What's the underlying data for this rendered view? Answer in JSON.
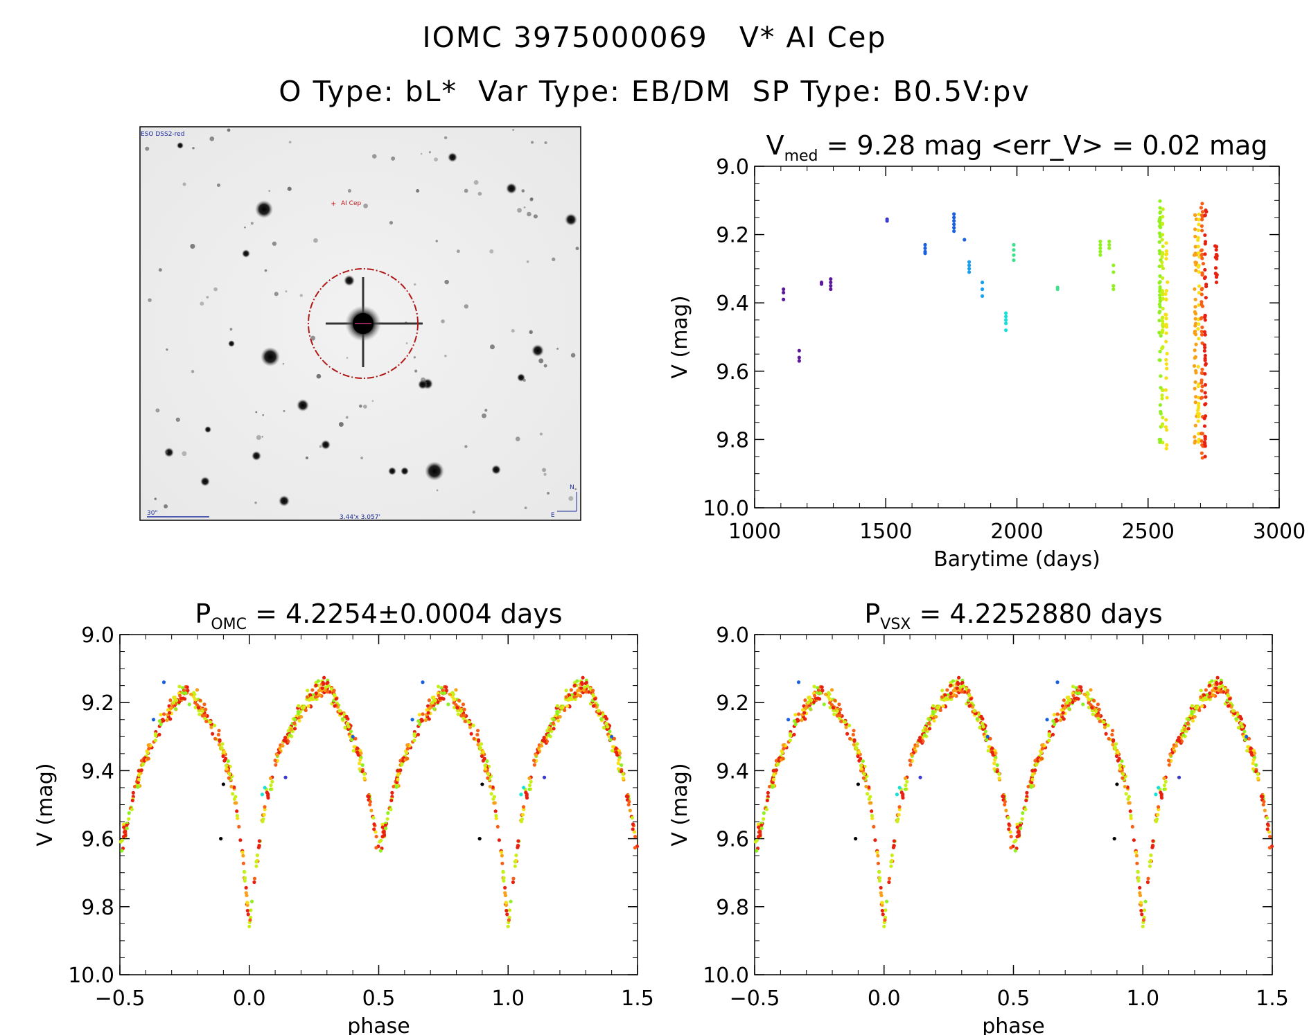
{
  "header": {
    "title": "IOMC 3975000069   V* AI Cep",
    "subtitle": "O Type: bL*  Var Type: EB/DM  SP Type: B0.5V:pv"
  },
  "finder_chart": {
    "survey_label": "ESO DSS2-red",
    "target_label": "AI Cep",
    "scale_label": "30\"",
    "fov_label": "3.44'x 3.057'",
    "compass_n": "N",
    "compass_e": "E"
  },
  "colors": {
    "epochs": [
      "#000000",
      "#5a1a9a",
      "#3a3ad0",
      "#1860e0",
      "#18a0f0",
      "#18e0d8",
      "#40e090",
      "#90f020",
      "#c8f018",
      "#f8e018",
      "#f8a018",
      "#f86018",
      "#e82010"
    ],
    "finder_circle": "#b01818"
  },
  "chart_data": [
    {
      "id": "light_curve",
      "type": "scatter",
      "title": "V",
      "title_sub": "med",
      "title_rest": " = 9.28 mag <err_V> = 0.02 mag",
      "xlabel": "Barytime (days)",
      "ylabel": "V (mag)",
      "xlim": [
        1000,
        3000
      ],
      "ylim": [
        10.0,
        9.0
      ],
      "xticks": [
        "1000",
        "1500",
        "2000",
        "2500",
        "3000"
      ],
      "yticks": [
        "9.0",
        "9.2",
        "9.4",
        "9.6",
        "9.8",
        "10.0"
      ],
      "clusters": [
        {
          "x": 1110,
          "y": [
            9.36,
            9.37,
            9.39
          ],
          "c": 1
        },
        {
          "x": 1170,
          "y": [
            9.54,
            9.56,
            9.57
          ],
          "c": 1
        },
        {
          "x": 1255,
          "y": [
            9.34,
            9.345
          ],
          "c": 1
        },
        {
          "x": 1290,
          "y": [
            9.33,
            9.34,
            9.35,
            9.36
          ],
          "c": 1
        },
        {
          "x": 1505,
          "y": [
            9.155,
            9.16
          ],
          "c": 2
        },
        {
          "x": 1650,
          "y": [
            9.23,
            9.24,
            9.25,
            9.255
          ],
          "c": 3
        },
        {
          "x": 1760,
          "y": [
            9.14,
            9.15,
            9.16,
            9.17,
            9.18,
            9.19
          ],
          "c": 3
        },
        {
          "x": 1800,
          "y": [
            9.215
          ],
          "c": 3
        },
        {
          "x": 1818,
          "y": [
            9.28,
            9.29,
            9.3,
            9.31
          ],
          "c": 4
        },
        {
          "x": 1868,
          "y": [
            9.34,
            9.36,
            9.38
          ],
          "c": 4
        },
        {
          "x": 1958,
          "y": [
            9.43,
            9.44,
            9.45,
            9.46,
            9.48
          ],
          "c": 5
        },
        {
          "x": 1988,
          "y": [
            9.23,
            9.245,
            9.26,
            9.275
          ],
          "c": 6
        },
        {
          "x": 2155,
          "y": [
            9.355,
            9.36
          ],
          "c": 6
        },
        {
          "x": 2318,
          "y": [
            9.22,
            9.23,
            9.24,
            9.25,
            9.26
          ],
          "c": 7
        },
        {
          "x": 2352,
          "y": [
            9.22,
            9.23,
            9.24
          ],
          "c": 7
        },
        {
          "x": 2368,
          "y": [
            9.29,
            9.31,
            9.35,
            9.36
          ],
          "c": 7
        },
        {
          "x": 2545,
          "y0": 9.1,
          "y1": 9.83,
          "n": 48,
          "c": 7
        },
        {
          "x": 2555,
          "y0": 9.12,
          "y1": 9.82,
          "n": 44,
          "c": 8
        },
        {
          "x": 2570,
          "y0": 9.22,
          "y1": 9.83,
          "n": 30,
          "c": 9
        },
        {
          "x": 2680,
          "y0": 9.12,
          "y1": 9.83,
          "n": 40,
          "c": 10
        },
        {
          "x": 2692,
          "y0": 9.14,
          "y1": 9.82,
          "n": 36,
          "c": 9
        },
        {
          "x": 2706,
          "y0": 9.1,
          "y1": 9.86,
          "n": 46,
          "c": 11
        },
        {
          "x": 2718,
          "y0": 9.12,
          "y1": 9.85,
          "n": 44,
          "c": 12
        },
        {
          "x": 2760,
          "y0": 9.19,
          "y1": 9.35,
          "n": 14,
          "c": 12
        }
      ]
    },
    {
      "id": "phase_omc",
      "type": "scatter",
      "title": "P",
      "title_sub": "OMC",
      "title_rest": " = 4.2254±0.0004 days",
      "xlabel": "phase",
      "ylabel": "V (mag)",
      "xlim": [
        -0.5,
        1.5
      ],
      "ylim": [
        10.0,
        9.0
      ],
      "xticks": [
        "−0.5",
        "0.0",
        "0.5",
        "1.0",
        "1.5"
      ],
      "yticks": [
        "9.0",
        "9.2",
        "9.4",
        "9.6",
        "9.8",
        "10.0"
      ],
      "curve": {
        "phase": [
          0.0,
          0.03,
          0.06,
          0.12,
          0.2,
          0.28,
          0.32,
          0.4,
          0.44,
          0.48,
          0.5,
          0.53,
          0.58,
          0.66,
          0.75,
          0.8,
          0.88,
          0.94,
          0.97,
          1.0
        ],
        "mag": [
          9.85,
          9.66,
          9.5,
          9.33,
          9.22,
          9.15,
          9.17,
          9.3,
          9.4,
          9.55,
          9.63,
          9.55,
          9.4,
          9.25,
          9.17,
          9.2,
          9.3,
          9.45,
          9.62,
          9.85
        ]
      }
    },
    {
      "id": "phase_vsx",
      "type": "scatter",
      "title": "P",
      "title_sub": "VSX",
      "title_rest": " = 4.2252880 days",
      "xlabel": "phase",
      "ylabel": "V (mag)",
      "xlim": [
        -0.5,
        1.5
      ],
      "ylim": [
        10.0,
        9.0
      ],
      "xticks": [
        "−0.5",
        "0.0",
        "0.5",
        "1.0",
        "1.5"
      ],
      "yticks": [
        "9.0",
        "9.2",
        "9.4",
        "9.6",
        "9.8",
        "10.0"
      ],
      "curve": {
        "phase": [
          0.0,
          0.03,
          0.06,
          0.12,
          0.2,
          0.28,
          0.32,
          0.4,
          0.44,
          0.48,
          0.5,
          0.53,
          0.58,
          0.66,
          0.75,
          0.8,
          0.88,
          0.94,
          0.97,
          1.0
        ],
        "mag": [
          9.85,
          9.66,
          9.5,
          9.33,
          9.22,
          9.15,
          9.17,
          9.3,
          9.4,
          9.55,
          9.63,
          9.55,
          9.4,
          9.25,
          9.17,
          9.2,
          9.3,
          9.45,
          9.62,
          9.85
        ]
      }
    }
  ]
}
